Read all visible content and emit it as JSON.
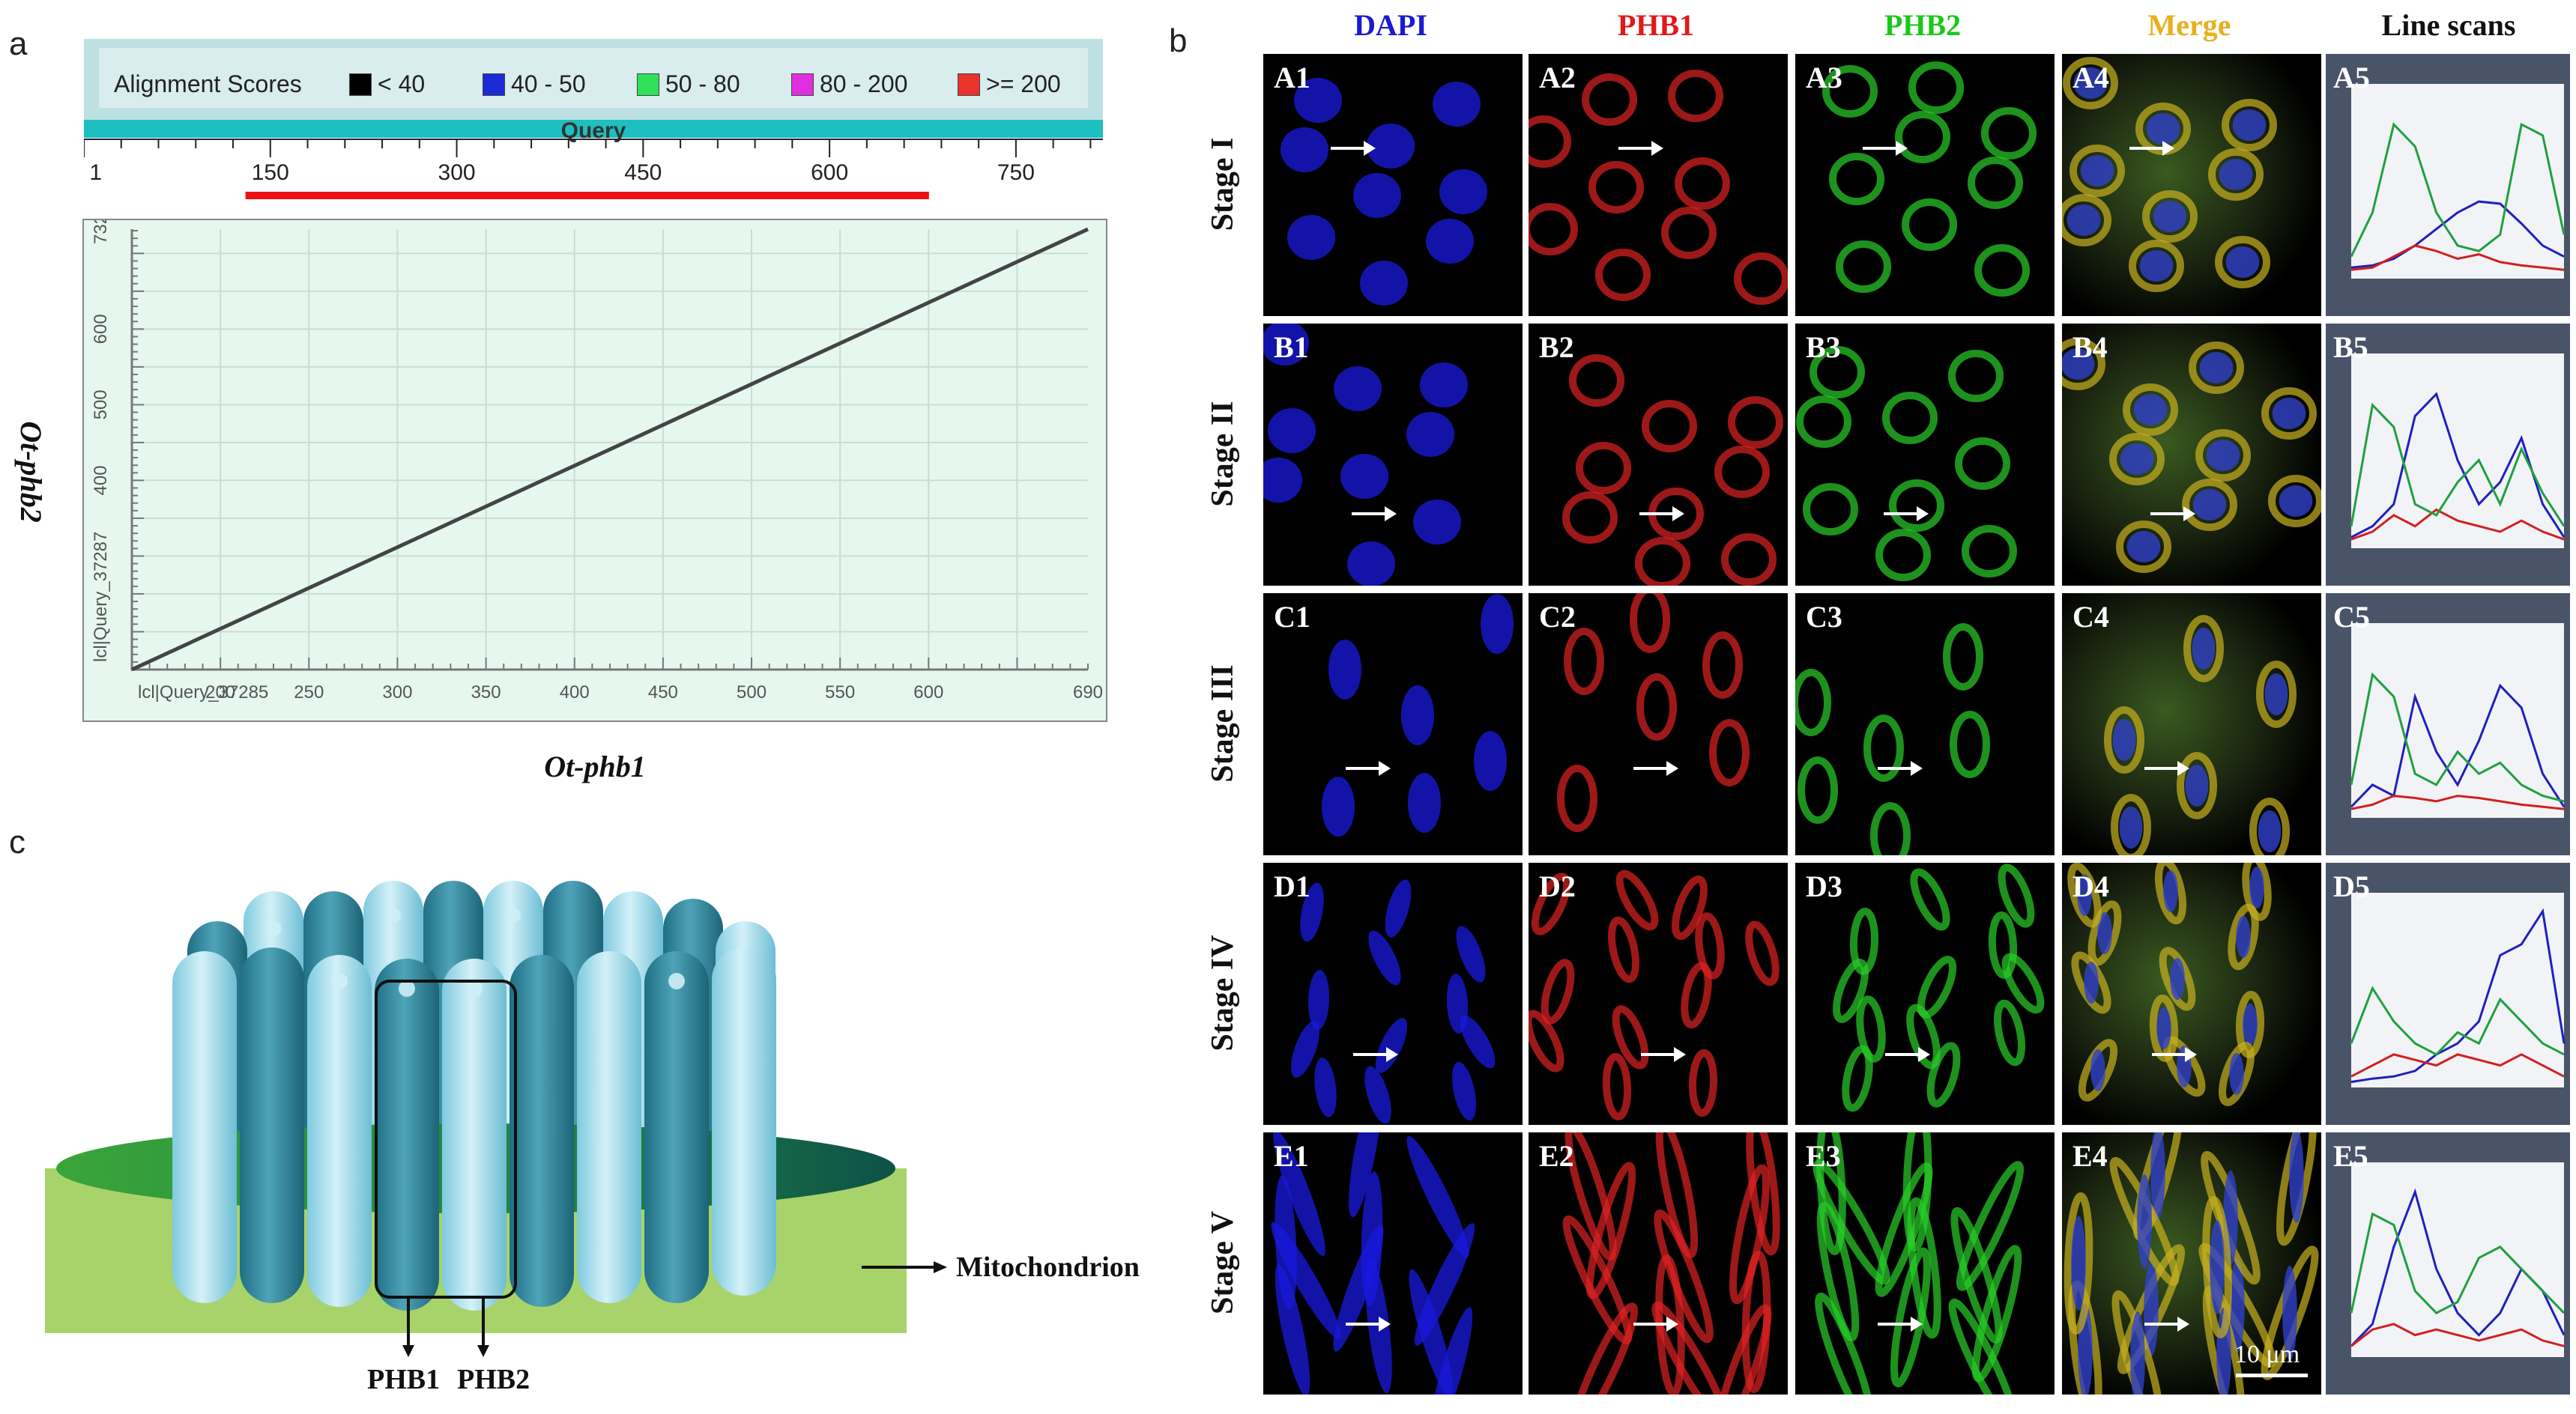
{
  "panel_letters": {
    "a": "a",
    "b": "b",
    "c": "c"
  },
  "panel_a": {
    "legend": {
      "title": "Alignment Scores",
      "items": [
        {
          "label": "< 40",
          "color": "#000000"
        },
        {
          "label": "40 - 50",
          "color": "#1a2bd6"
        },
        {
          "label": "50 - 80",
          "color": "#2ee05a"
        },
        {
          "label": "80 - 200",
          "color": "#e02ee0"
        },
        {
          "label": ">= 200",
          "color": "#e8342a"
        }
      ]
    },
    "query_label": "Query",
    "query_ticks": [
      "1",
      "150",
      "300",
      "450",
      "600",
      "750"
    ],
    "query_tick_values": [
      1,
      150,
      300,
      450,
      600,
      750
    ],
    "query_max": 820,
    "hit_range": [
      130,
      680
    ],
    "hit_color": "#ee1111",
    "dotplot": {
      "x_title": "Ot-phb1",
      "y_title": "Ot-phb2",
      "x_axis_prefix": "lcl|Query_37285",
      "y_axis_prefix": "lcl|Query_37287",
      "x_ticks": [
        "200",
        "250",
        "300",
        "350",
        "400",
        "450",
        "500",
        "550",
        "600",
        "690"
      ],
      "y_ticks": [
        "400",
        "500",
        "600",
        "732"
      ],
      "line_start": [
        150,
        150
      ],
      "line_end": [
        690,
        732
      ]
    }
  },
  "panel_c": {
    "label_mito": "Mitochondrion",
    "label_phb1": "PHB1",
    "label_phb2": "PHB2"
  },
  "panel_b": {
    "columns": [
      {
        "label": "DAPI",
        "color": "#1a1ad0"
      },
      {
        "label": "PHB1",
        "color": "#e01a1a"
      },
      {
        "label": "PHB2",
        "color": "#1ac81a"
      },
      {
        "label": "Merge",
        "color": "#e8b020"
      },
      {
        "label": "Line scans",
        "color": "#111111"
      }
    ],
    "rows": [
      {
        "stage": "Stage I",
        "tiles": [
          "A1",
          "A2",
          "A3",
          "A4",
          "A5"
        ]
      },
      {
        "stage": "Stage II",
        "tiles": [
          "B1",
          "B2",
          "B3",
          "B4",
          "B5"
        ]
      },
      {
        "stage": "Stage III",
        "tiles": [
          "C1",
          "C2",
          "C3",
          "C4",
          "C5"
        ]
      },
      {
        "stage": "Stage IV",
        "tiles": [
          "D1",
          "D2",
          "D3",
          "D4",
          "D5"
        ]
      },
      {
        "stage": "Stage V",
        "tiles": [
          "E1",
          "E2",
          "E3",
          "E4",
          "E5"
        ]
      }
    ],
    "scale_bar": "10 μm",
    "line_scan_series": [
      {
        "name": "DAPI",
        "color": "#2020c0"
      },
      {
        "name": "PHB1",
        "color": "#d02020"
      },
      {
        "name": "PHB2",
        "color": "#20a040"
      }
    ],
    "line_scan_data": [
      {
        "dapi": [
          10,
          12,
          18,
          30,
          45,
          60,
          70,
          68,
          50,
          30,
          20
        ],
        "phb1": [
          8,
          10,
          20,
          30,
          25,
          18,
          22,
          15,
          12,
          10,
          8
        ],
        "phb2": [
          20,
          60,
          140,
          120,
          60,
          30,
          25,
          40,
          140,
          130,
          40
        ]
      },
      {
        "dapi": [
          10,
          20,
          40,
          120,
          140,
          80,
          40,
          60,
          100,
          40,
          10
        ],
        "phb1": [
          8,
          15,
          30,
          20,
          35,
          25,
          20,
          15,
          25,
          15,
          8
        ],
        "phb2": [
          20,
          130,
          110,
          40,
          30,
          60,
          80,
          40,
          90,
          50,
          20
        ]
      },
      {
        "dapi": [
          10,
          30,
          20,
          110,
          60,
          30,
          70,
          120,
          100,
          40,
          10
        ],
        "phb1": [
          8,
          12,
          20,
          18,
          15,
          20,
          18,
          15,
          12,
          10,
          8
        ],
        "phb2": [
          30,
          130,
          110,
          40,
          30,
          60,
          40,
          50,
          30,
          20,
          15
        ]
      },
      {
        "dapi": [
          5,
          8,
          10,
          15,
          30,
          40,
          60,
          120,
          130,
          160,
          40
        ],
        "phb1": [
          10,
          20,
          30,
          25,
          20,
          30,
          25,
          20,
          30,
          20,
          10
        ],
        "phb2": [
          40,
          90,
          60,
          40,
          30,
          50,
          40,
          80,
          60,
          40,
          30
        ]
      },
      {
        "dapi": [
          10,
          30,
          100,
          150,
          80,
          40,
          20,
          40,
          80,
          60,
          20
        ],
        "phb1": [
          10,
          25,
          30,
          20,
          25,
          20,
          15,
          20,
          25,
          15,
          10
        ],
        "phb2": [
          40,
          130,
          120,
          60,
          40,
          50,
          90,
          100,
          80,
          60,
          40
        ]
      }
    ]
  }
}
